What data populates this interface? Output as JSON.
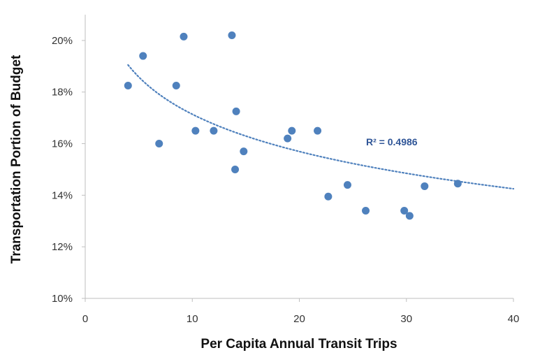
{
  "chart_data": {
    "type": "scatter",
    "xlabel": "Per Capita Annual Transit Trips",
    "ylabel": "Transportation Portion of Budget",
    "xlim": [
      0,
      40
    ],
    "ylim": [
      10,
      21
    ],
    "x_ticks": [
      {
        "value": 0,
        "label": "0"
      },
      {
        "value": 10,
        "label": "10"
      },
      {
        "value": 20,
        "label": "20"
      },
      {
        "value": 30,
        "label": "30"
      },
      {
        "value": 40,
        "label": "40"
      }
    ],
    "y_ticks": [
      {
        "value": 10,
        "label": "10%"
      },
      {
        "value": 12,
        "label": "12%"
      },
      {
        "value": 14,
        "label": "14%"
      },
      {
        "value": 16,
        "label": "16%"
      },
      {
        "value": 18,
        "label": "18%"
      },
      {
        "value": 20,
        "label": "20%"
      }
    ],
    "grid": false,
    "points": [
      {
        "x": 4.0,
        "y": 18.25
      },
      {
        "x": 5.4,
        "y": 19.4
      },
      {
        "x": 6.9,
        "y": 16.0
      },
      {
        "x": 8.5,
        "y": 18.25
      },
      {
        "x": 9.2,
        "y": 20.15
      },
      {
        "x": 10.3,
        "y": 16.5
      },
      {
        "x": 12.0,
        "y": 16.5
      },
      {
        "x": 13.7,
        "y": 20.2
      },
      {
        "x": 14.0,
        "y": 15.0
      },
      {
        "x": 14.1,
        "y": 17.25
      },
      {
        "x": 14.8,
        "y": 15.7
      },
      {
        "x": 18.9,
        "y": 16.2
      },
      {
        "x": 19.3,
        "y": 16.5
      },
      {
        "x": 21.7,
        "y": 16.5
      },
      {
        "x": 22.7,
        "y": 13.95
      },
      {
        "x": 24.5,
        "y": 14.4
      },
      {
        "x": 26.2,
        "y": 13.4
      },
      {
        "x": 29.8,
        "y": 13.4
      },
      {
        "x": 30.3,
        "y": 13.2
      },
      {
        "x": 31.7,
        "y": 14.35
      },
      {
        "x": 34.8,
        "y": 14.45
      }
    ],
    "trendline": {
      "type": "logarithmic",
      "x_range": [
        4,
        40
      ],
      "y_at_start": 19.05,
      "y_at_end": 14.25,
      "r2_label": "R² = 0.4986"
    },
    "colors": {
      "marker": "#4f81bd",
      "trendline": "#4f81bd",
      "r2_text": "#2f5597",
      "axis": "#bfbfbf"
    }
  }
}
